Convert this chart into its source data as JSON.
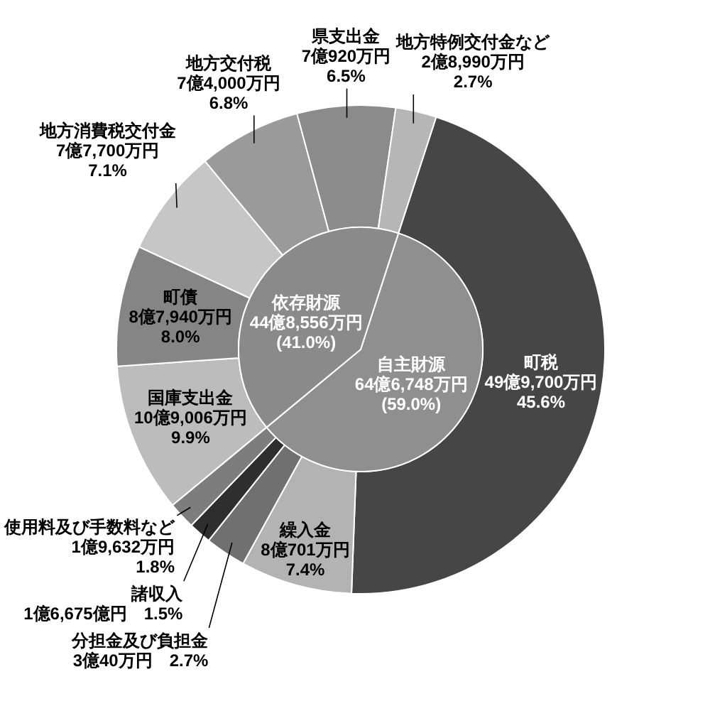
{
  "chart_data": [
    {
      "type": "donut",
      "categories": [
        "町税",
        "繰入金",
        "分担金及び負担金",
        "諸収入",
        "使用料及び手数料など",
        "国庫支出金",
        "町債",
        "地方消費税交付金",
        "地方交付税",
        "県支出金",
        "地方特例交付金など"
      ],
      "values": [
        45.6,
        7.4,
        2.7,
        1.5,
        1.8,
        9.9,
        8.0,
        7.1,
        6.8,
        6.5,
        2.7
      ],
      "colors": [
        "#464646",
        "#b3b3b3",
        "#707070",
        "#2e2e2e",
        "#7d7d7d",
        "#bcbcbc",
        "#858585",
        "#c6c6c6",
        "#9a9a9a",
        "#8b8b8b",
        "#b6b6b6"
      ],
      "value_labels": [
        "49億9,700万円\n45.6%",
        "8億701万円\n7.4%",
        "3億40万円　2.7%",
        "1億6,675億円　1.5%",
        "1億9,632万円\n1.8%",
        "10億9,006万円\n9.9%",
        "8億7,940万円\n8.0%",
        "7億7,700万円\n7.1%",
        "7億4,000万円\n6.8%",
        "7億920万円\n6.5%",
        "2億8,990万円\n2.7%"
      ]
    },
    {
      "type": "pie",
      "categories": [
        "自主財源",
        "依存財源"
      ],
      "values": [
        59.0,
        41.0
      ],
      "colors": [
        "#8f8f8f",
        "#8a8a8a"
      ],
      "value_labels": [
        "64億6,748万円\n(59.0%)",
        "44億8,556万円\n(41.0%)"
      ]
    }
  ]
}
